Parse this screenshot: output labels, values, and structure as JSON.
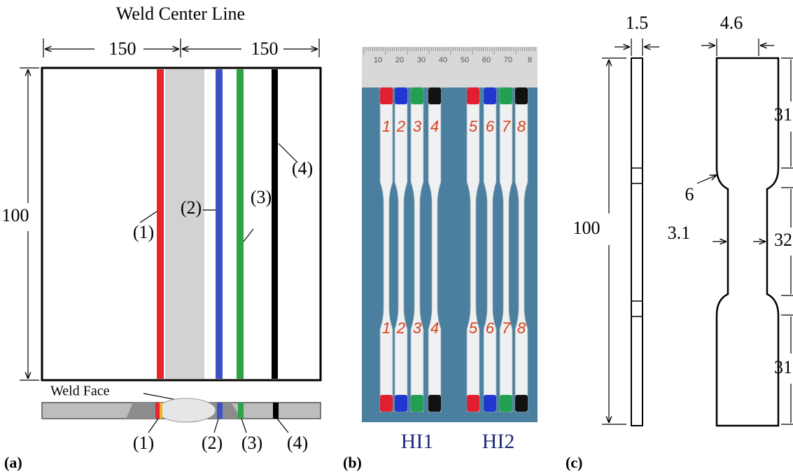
{
  "panel_a": {
    "title": "Weld Center Line",
    "width_labels": [
      "150",
      "150"
    ],
    "height_label": "100",
    "line_labels": [
      "(1)",
      "(2)",
      "(3)",
      "(4)"
    ],
    "weld_face": "Weld Face",
    "section_labels": [
      "(1)",
      "(2)",
      "(3)",
      "(4)"
    ],
    "caption": "(a)"
  },
  "panel_b": {
    "ruler_labels": [
      "10",
      "20",
      "30",
      "40",
      "50",
      "60",
      "70",
      "8"
    ],
    "specimen_labels": [
      "1",
      "2",
      "3",
      "4",
      "5",
      "6",
      "7",
      "8"
    ],
    "group_labels": [
      "HI1",
      "HI2"
    ],
    "caption": "(b)"
  },
  "panel_c": {
    "thickness": "1.5",
    "width": "4.6",
    "length": "100",
    "radius": "6",
    "gauge_width": "3.1",
    "segments": [
      "31",
      "32",
      "31"
    ],
    "caption": "(c)"
  }
}
